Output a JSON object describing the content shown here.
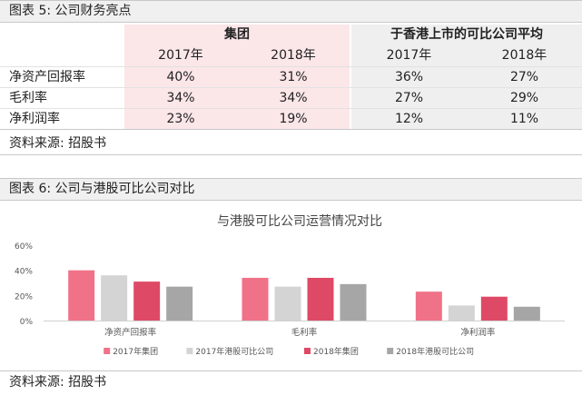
{
  "caption1": "图表 5:  公司财务亮点",
  "table": {
    "group1": "集团",
    "group2": "于香港上市的可比公司平均",
    "years": [
      "2017年",
      "2018年",
      "2017年",
      "2018年"
    ],
    "rows": [
      {
        "label": "净资产回报率",
        "values": [
          "40%",
          "31%",
          "36%",
          "27%"
        ]
      },
      {
        "label": "毛利率",
        "values": [
          "34%",
          "34%",
          "27%",
          "29%"
        ]
      },
      {
        "label": "净利润率",
        "values": [
          "23%",
          "19%",
          "12%",
          "11%"
        ]
      }
    ]
  },
  "source1": "资料来源:  招股书",
  "caption2": "图表 6:  公司与港股可比公司对比",
  "source2": "资料来源:  招股书",
  "chart_data": {
    "type": "bar",
    "title": "与港股可比公司运营情况对比",
    "categories": [
      "净资产回报率",
      "毛利率",
      "净利润率"
    ],
    "series": [
      {
        "name": "2017年集团",
        "color": "#f07288",
        "values": [
          40,
          34,
          23
        ]
      },
      {
        "name": "2017年港股可比公司",
        "color": "#d4d4d4",
        "values": [
          36,
          27,
          12
        ]
      },
      {
        "name": "2018年集团",
        "color": "#de4a66",
        "values": [
          31,
          34,
          19
        ]
      },
      {
        "name": "2018年港股可比公司",
        "color": "#a6a6a6",
        "values": [
          27,
          29,
          11
        ]
      }
    ],
    "ylim": [
      0,
      60
    ],
    "yticks": [
      "0%",
      "20%",
      "40%",
      "60%"
    ],
    "ytick_values": [
      0,
      20,
      40,
      60
    ],
    "grid": false,
    "legend": "bottom"
  }
}
